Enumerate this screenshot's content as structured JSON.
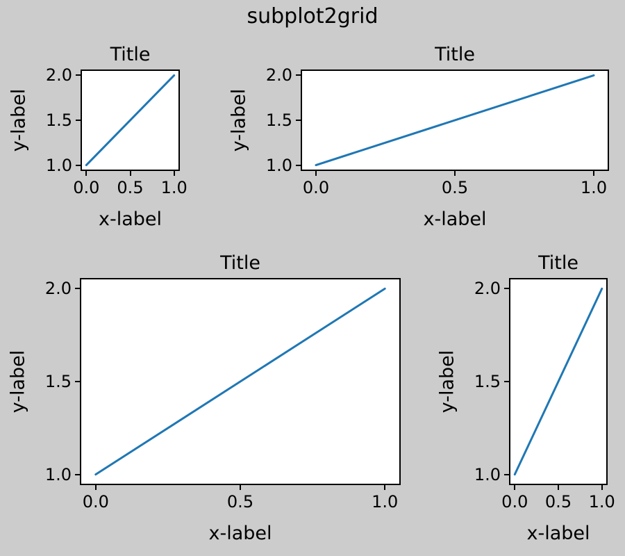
{
  "figure": {
    "suptitle": "subplot2grid",
    "background_color": "#cccccc",
    "axes_background_color": "#ffffff",
    "spine_color": "#000000",
    "line_color": "#1f77b4",
    "line_width": 3
  },
  "chart_data": [
    {
      "type": "line",
      "title": "Title",
      "xlabel": "x-label",
      "ylabel": "y-label",
      "x": [
        0.0,
        1.0
      ],
      "y": [
        1.0,
        2.0
      ],
      "xlim": [
        -0.05,
        1.05
      ],
      "ylim": [
        0.95,
        2.05
      ],
      "xticks": [
        0.0,
        0.5,
        1.0
      ],
      "yticks": [
        1.0,
        1.5,
        2.0
      ],
      "xtick_labels": [
        "0.0",
        "0.5",
        "1.0"
      ],
      "ytick_labels": [
        "1.0",
        "1.5",
        "2.0"
      ],
      "grid": false,
      "legend": null,
      "layout": {
        "grid_shape": [
          3,
          3
        ],
        "loc": [
          0,
          0
        ],
        "colspan": 1,
        "rowspan": 1
      }
    },
    {
      "type": "line",
      "title": "Title",
      "xlabel": "x-label",
      "ylabel": "y-label",
      "x": [
        0.0,
        1.0
      ],
      "y": [
        1.0,
        2.0
      ],
      "xlim": [
        -0.05,
        1.05
      ],
      "ylim": [
        0.95,
        2.05
      ],
      "xticks": [
        0.0,
        0.5,
        1.0
      ],
      "yticks": [
        1.0,
        1.5,
        2.0
      ],
      "xtick_labels": [
        "0.0",
        "0.5",
        "1.0"
      ],
      "ytick_labels": [
        "1.0",
        "1.5",
        "2.0"
      ],
      "grid": false,
      "legend": null,
      "layout": {
        "grid_shape": [
          3,
          3
        ],
        "loc": [
          0,
          1
        ],
        "colspan": 2,
        "rowspan": 1
      }
    },
    {
      "type": "line",
      "title": "Title",
      "xlabel": "x-label",
      "ylabel": "y-label",
      "x": [
        0.0,
        1.0
      ],
      "y": [
        1.0,
        2.0
      ],
      "xlim": [
        -0.05,
        1.05
      ],
      "ylim": [
        0.95,
        2.05
      ],
      "xticks": [
        0.0,
        0.5,
        1.0
      ],
      "yticks": [
        1.0,
        1.5,
        2.0
      ],
      "xtick_labels": [
        "0.0",
        "0.5",
        "1.0"
      ],
      "ytick_labels": [
        "1.0",
        "1.5",
        "2.0"
      ],
      "grid": false,
      "legend": null,
      "layout": {
        "grid_shape": [
          3,
          3
        ],
        "loc": [
          1,
          0
        ],
        "colspan": 2,
        "rowspan": 2
      }
    },
    {
      "type": "line",
      "title": "Title",
      "xlabel": "x-label",
      "ylabel": "y-label",
      "x": [
        0.0,
        1.0
      ],
      "y": [
        1.0,
        2.0
      ],
      "xlim": [
        -0.05,
        1.05
      ],
      "ylim": [
        0.95,
        2.05
      ],
      "xticks": [
        0.0,
        0.5,
        1.0
      ],
      "yticks": [
        1.0,
        1.5,
        2.0
      ],
      "xtick_labels": [
        "0.0",
        "0.5",
        "1.0"
      ],
      "ytick_labels": [
        "1.0",
        "1.5",
        "2.0"
      ],
      "grid": false,
      "legend": null,
      "layout": {
        "grid_shape": [
          3,
          3
        ],
        "loc": [
          1,
          2
        ],
        "colspan": 1,
        "rowspan": 2
      }
    }
  ]
}
